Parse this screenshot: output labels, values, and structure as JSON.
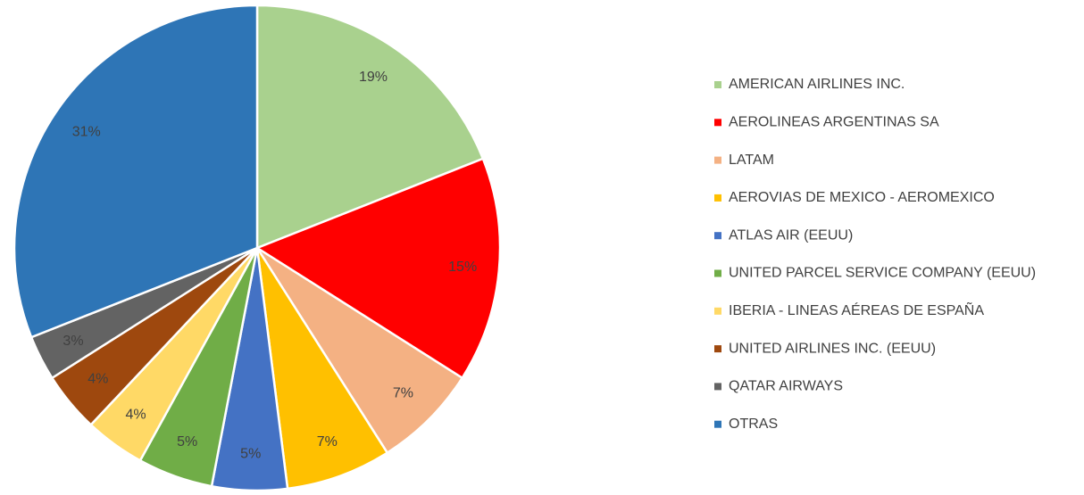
{
  "chart_data": {
    "type": "pie",
    "categories": [
      "AMERICAN AIRLINES INC.",
      "AEROLINEAS ARGENTINAS SA",
      "LATAM",
      "AEROVIAS DE MEXICO - AEROMEXICO",
      "ATLAS AIR (EEUU)",
      "UNITED PARCEL SERVICE COMPANY (EEUU)",
      "IBERIA - LINEAS AÉREAS DE ESPAÑA",
      "UNITED AIRLINES INC. (EEUU)",
      "QATAR AIRWAYS",
      "OTRAS"
    ],
    "values": [
      19,
      15,
      7,
      7,
      5,
      5,
      4,
      4,
      3,
      31
    ],
    "value_labels": [
      "19%",
      "15%",
      "7%",
      "7%",
      "5%",
      "5%",
      "4%",
      "4%",
      "3%",
      "31%"
    ],
    "colors": [
      "#a9d18e",
      "#ff0000",
      "#f4b183",
      "#ffc000",
      "#4472c4",
      "#70ad47",
      "#ffd966",
      "#9e480e",
      "#636363",
      "#2e75b6"
    ],
    "legend": "right"
  }
}
